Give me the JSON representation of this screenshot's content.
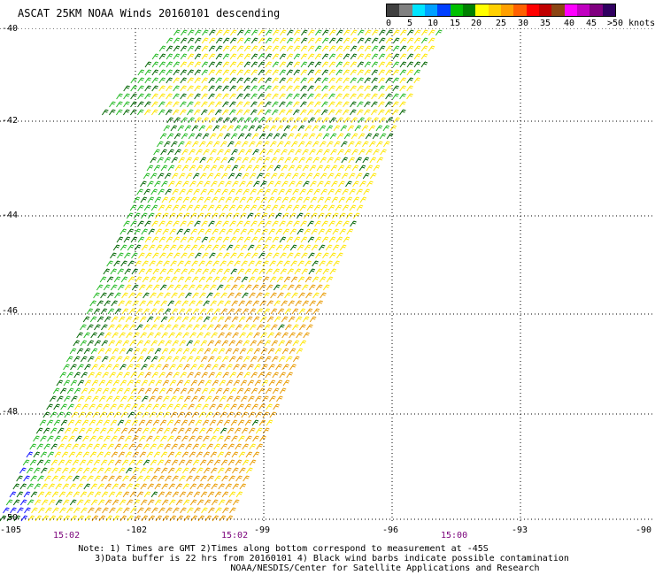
{
  "title": "ASCAT 25KM NOAA Winds 20160101 descending",
  "legend": {
    "colors": [
      "#404040",
      "#808080",
      "#00e5ff",
      "#00a0ff",
      "#0040ff",
      "#00c000",
      "#008000",
      "#ffff00",
      "#ffd000",
      "#ffa000",
      "#ff6000",
      "#ff0000",
      "#c00000",
      "#8b4513",
      "#ff00ff",
      "#c000c0",
      "#800080",
      "#300060"
    ],
    "labels": [
      "0",
      "5",
      "10",
      "15",
      "20",
      "25",
      "30",
      "35",
      "40",
      "45",
      ">50 knots"
    ]
  },
  "axes": {
    "lat_labels": [
      "-40",
      "-42",
      "-44",
      "-46",
      "-48",
      "-50"
    ],
    "lon_labels": [
      "-105",
      "-102",
      "-99",
      "-96",
      "-93",
      "-90"
    ]
  },
  "time_labels": [
    "15:02",
    "15:02",
    "15:00"
  ],
  "notes": [
    "Note: 1) Times are GMT 2)Times along bottom correspond to measurement at -45S",
    "3)Data buffer is 22 hrs from 20160101 4) Black wind barbs indicate possible contamination",
    "NOAA/NESDIS/Center for Satellite Applications and Research"
  ],
  "colors": {
    "barb_yellow": "#ffe600",
    "barb_orange": "#e89a00",
    "barb_green": "#22b922",
    "barb_dark_green": "#006400",
    "barb_blue": "#1010ff",
    "grid": "#000000"
  }
}
